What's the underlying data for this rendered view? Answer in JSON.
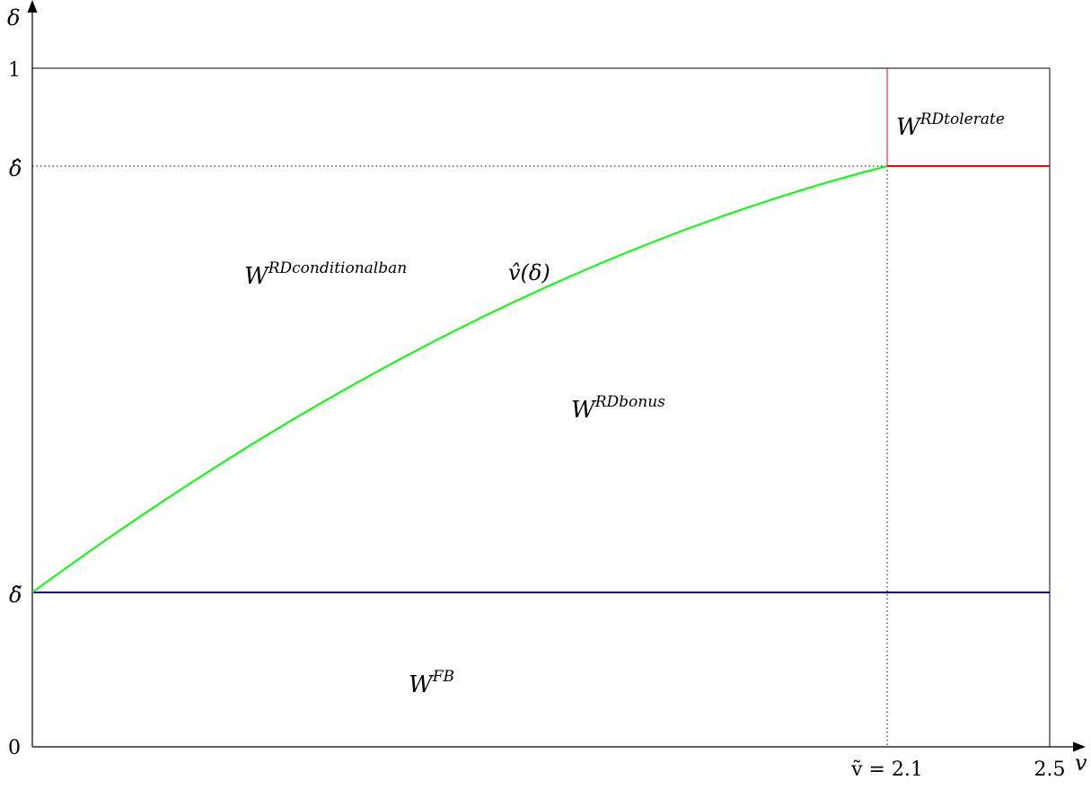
{
  "axes": {
    "x_label": "v",
    "y_label": "δ",
    "x_ticks": {
      "origin": "0",
      "v_tilde": "ṽ = 2.1",
      "max": "2.5"
    },
    "y_ticks": {
      "one": "1",
      "delta_hat": "δ̂",
      "delta_tilde": "δ̃"
    }
  },
  "regions": {
    "tolerate": {
      "base": "W",
      "sup": "RDtolerate"
    },
    "conditional_ban": {
      "base": "W",
      "sup": "RDconditionalban"
    },
    "bonus": {
      "base": "W",
      "sup": "RDbonus"
    },
    "first_best": {
      "base": "W",
      "sup": "FB"
    }
  },
  "curve_label": "v̂(δ)",
  "colors": {
    "curve": "#00ff00",
    "threshold_tolerate": "#ff0000",
    "threshold_fb": "#0000cc",
    "frame": "#000000"
  }
}
